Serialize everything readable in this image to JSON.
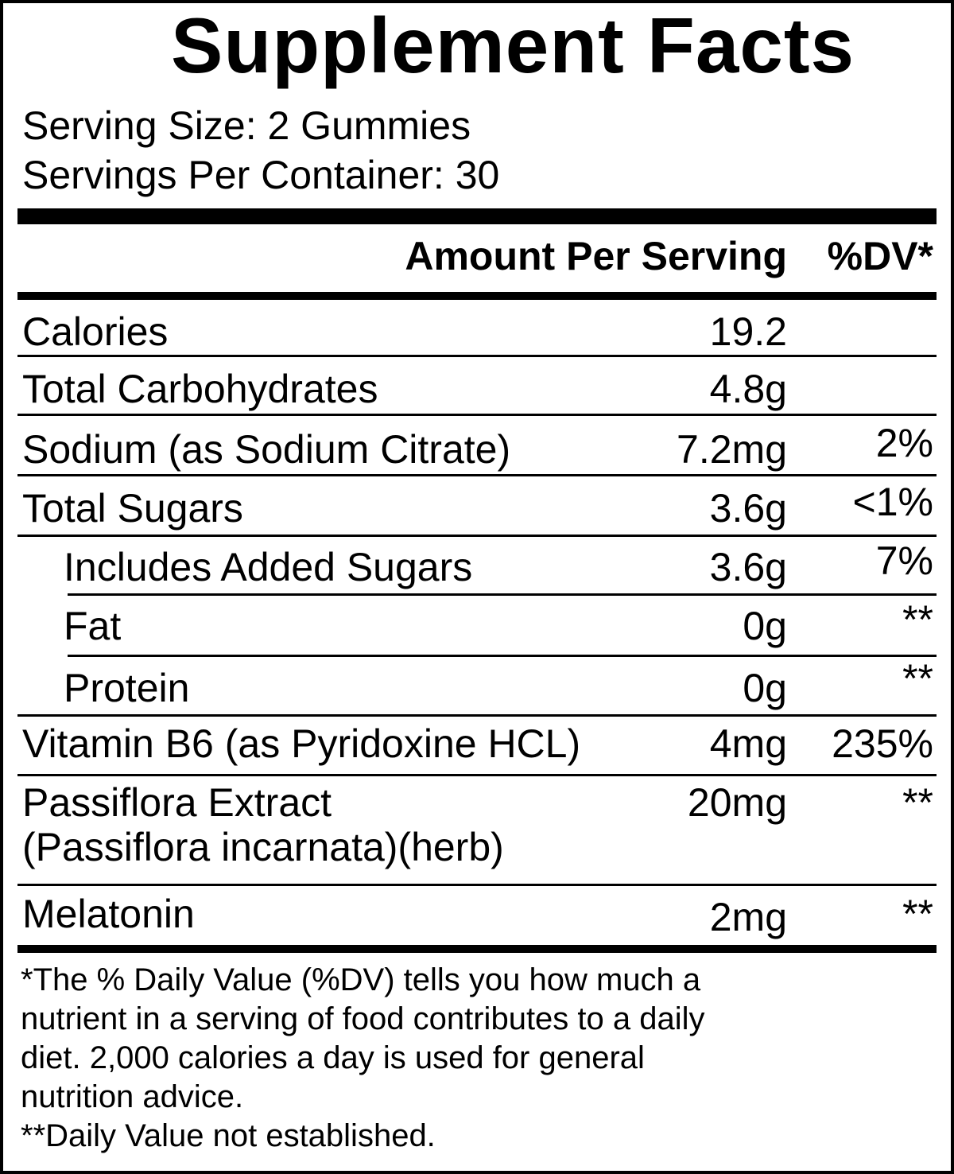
{
  "title": "Supplement Facts",
  "serving_size": "Serving Size: 2 Gummies",
  "servings_per_container": "Servings Per Container: 30",
  "header": {
    "amount": "Amount Per Serving",
    "dv": "%DV*"
  },
  "rows": [
    {
      "name": "Calories",
      "amount": "19.2",
      "dv": ""
    },
    {
      "name": "Total Carbohydrates",
      "amount": "4.8g",
      "dv": ""
    },
    {
      "name": "Sodium (as Sodium Citrate)",
      "amount": "7.2mg",
      "dv": "2%"
    },
    {
      "name": "Total Sugars",
      "amount": "3.6g",
      "dv": "<1%"
    },
    {
      "name": "Includes Added Sugars",
      "amount": "3.6g",
      "dv": "7%"
    },
    {
      "name": "Fat",
      "amount": "0g",
      "dv": "**"
    },
    {
      "name": "Protein",
      "amount": "0g",
      "dv": "**"
    },
    {
      "name": "Vitamin B6 (as Pyridoxine HCL)",
      "amount": "4mg",
      "dv": "235%"
    },
    {
      "name": "Passiflora Extract",
      "name2": "(Passiflora incarnata)(herb)",
      "amount": "20mg",
      "dv": "**"
    },
    {
      "name": "Melatonin",
      "amount": "2mg",
      "dv": "**"
    }
  ],
  "footnotes": [
    "*The % Daily Value (%DV) tells you how much a",
    "nutrient in a serving of food contributes to a daily",
    "diet. 2,000 calories a day is used for general",
    "nutrition advice.",
    "**Daily Value not established."
  ]
}
